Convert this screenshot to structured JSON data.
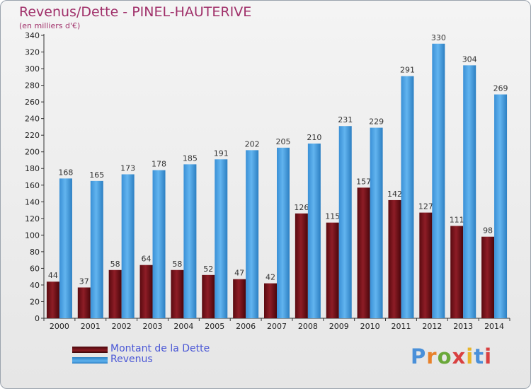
{
  "chart_data": {
    "type": "bar",
    "title": "Revenus/Dette - PINEL-HAUTERIVE",
    "subtitle": "(en milliers d'€)",
    "categories": [
      "2000",
      "2001",
      "2002",
      "2003",
      "2004",
      "2005",
      "2006",
      "2007",
      "2008",
      "2009",
      "2010",
      "2011",
      "2012",
      "2013",
      "2014"
    ],
    "series": [
      {
        "name": "Montant de la Dette",
        "color": "#7a1218",
        "values": [
          44,
          37,
          58,
          64,
          58,
          52,
          47,
          42,
          126,
          115,
          157,
          142,
          127,
          111,
          98
        ]
      },
      {
        "name": "Revenus",
        "color": "#4aa3e6",
        "values": [
          168,
          165,
          173,
          178,
          185,
          191,
          202,
          205,
          210,
          231,
          229,
          291,
          330,
          304,
          269
        ]
      }
    ],
    "ylim": [
      0,
      340
    ],
    "yticks": [
      0,
      20,
      40,
      60,
      80,
      100,
      120,
      140,
      160,
      180,
      200,
      220,
      240,
      260,
      280,
      300,
      320,
      340
    ],
    "grid": false,
    "legend_position": "bottom-left"
  },
  "logo": {
    "letters": [
      "P",
      "r",
      "o",
      "x",
      "i",
      "t",
      "i"
    ],
    "colors": [
      "#4a90d9",
      "#e8812a",
      "#6aa83a",
      "#d94040",
      "#e8b52a",
      "#4a90d9",
      "#d94040"
    ]
  }
}
